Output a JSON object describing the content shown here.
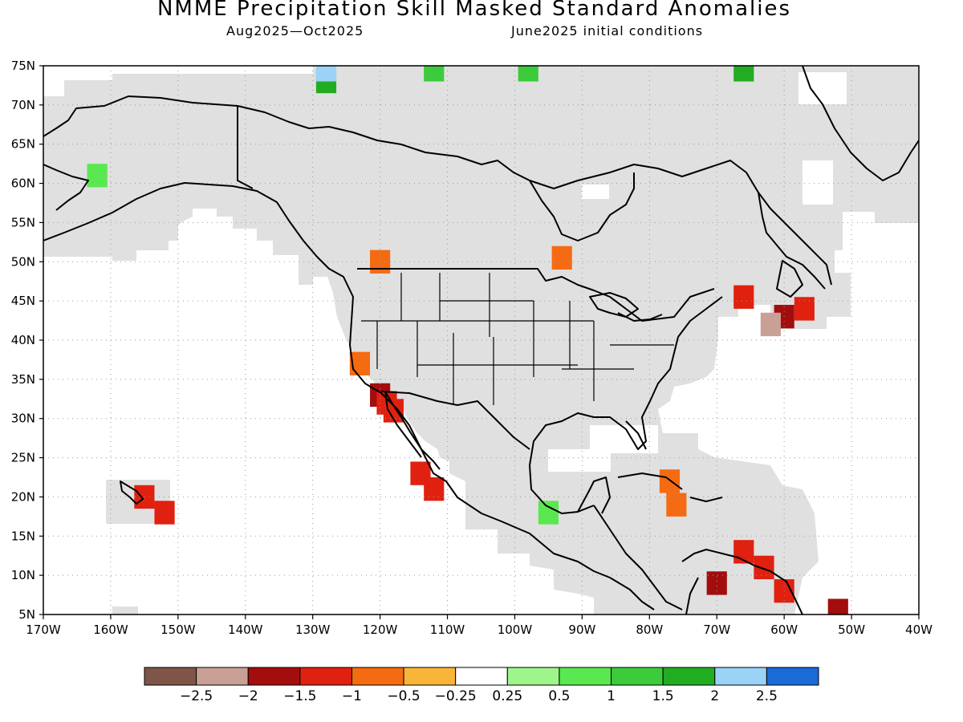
{
  "title": "NMME Precipitation Skill Masked Standard Anomalies",
  "subtitle_left": "Aug2025—Oct2025",
  "subtitle_right": "June2025 initial conditions",
  "map": {
    "lon_range": [
      -170,
      -40
    ],
    "lat_range": [
      5,
      75
    ],
    "lon_ticks": [
      {
        "value": -170,
        "label": "170W"
      },
      {
        "value": -160,
        "label": "160W"
      },
      {
        "value": -150,
        "label": "150W"
      },
      {
        "value": -140,
        "label": "140W"
      },
      {
        "value": -130,
        "label": "130W"
      },
      {
        "value": -120,
        "label": "120W"
      },
      {
        "value": -110,
        "label": "110W"
      },
      {
        "value": -100,
        "label": "100W"
      },
      {
        "value": -90,
        "label": "90W"
      },
      {
        "value": -80,
        "label": "80W"
      },
      {
        "value": -70,
        "label": "70W"
      },
      {
        "value": -60,
        "label": "60W"
      },
      {
        "value": -50,
        "label": "50W"
      },
      {
        "value": -40,
        "label": "40W"
      }
    ],
    "lat_ticks": [
      {
        "value": 75,
        "label": "75N"
      },
      {
        "value": 70,
        "label": "70N"
      },
      {
        "value": 65,
        "label": "65N"
      },
      {
        "value": 60,
        "label": "60N"
      },
      {
        "value": 55,
        "label": "55N"
      },
      {
        "value": 50,
        "label": "50N"
      },
      {
        "value": 45,
        "label": "45N"
      },
      {
        "value": 40,
        "label": "40N"
      },
      {
        "value": 35,
        "label": "35N"
      },
      {
        "value": 30,
        "label": "30N"
      },
      {
        "value": 25,
        "label": "25N"
      },
      {
        "value": 20,
        "label": "20N"
      },
      {
        "value": 15,
        "label": "15N"
      },
      {
        "value": 10,
        "label": "10N"
      },
      {
        "value": 5,
        "label": "5N"
      }
    ],
    "grid": true,
    "mask_color": "#e0e0e0",
    "coast_color": "#000000",
    "anomaly_cells": [
      {
        "lon": -120,
        "lat": 33,
        "level": -1.75
      },
      {
        "lon": -119,
        "lat": 32,
        "level": -1.25
      },
      {
        "lon": -118,
        "lat": 31,
        "level": -1.25
      },
      {
        "lon": -123,
        "lat": 37,
        "level": -0.5
      },
      {
        "lon": -114,
        "lat": 23,
        "level": -1.25
      },
      {
        "lon": -112,
        "lat": 21,
        "level": -1.25
      },
      {
        "lon": -155,
        "lat": 20,
        "level": -1.25
      },
      {
        "lon": -152,
        "lat": 18,
        "level": -1.25
      },
      {
        "lon": -60,
        "lat": 43,
        "level": -1.75
      },
      {
        "lon": -57,
        "lat": 44,
        "level": -1.25
      },
      {
        "lon": -62,
        "lat": 42,
        "level": -2.25
      },
      {
        "lon": -66,
        "lat": 13,
        "level": -1.25
      },
      {
        "lon": -63,
        "lat": 11,
        "level": -1.25
      },
      {
        "lon": -70,
        "lat": 9,
        "level": -1.75
      },
      {
        "lon": -60,
        "lat": 8,
        "level": -1.25
      },
      {
        "lon": -52,
        "lat": 5.5,
        "level": -1.75
      },
      {
        "lon": -77,
        "lat": 22,
        "level": -0.5
      },
      {
        "lon": -76,
        "lat": 19,
        "level": -0.5
      },
      {
        "lon": -95,
        "lat": 18,
        "level": 0.75
      },
      {
        "lon": -162,
        "lat": 61,
        "level": 0.75
      },
      {
        "lon": -112,
        "lat": 74.5,
        "level": 1.25
      },
      {
        "lon": -98,
        "lat": 74.5,
        "level": 1.25
      },
      {
        "lon": -66,
        "lat": 74.5,
        "level": 1.75
      },
      {
        "lon": -128,
        "lat": 73,
        "level": 1.75
      },
      {
        "lon": -128,
        "lat": 74.5,
        "level": 2.25
      },
      {
        "lon": -120,
        "lat": 50,
        "level": -0.5
      },
      {
        "lon": -93,
        "lat": 50.5,
        "level": -0.5
      },
      {
        "lon": -66,
        "lat": 45.5,
        "level": -1.25
      }
    ]
  },
  "colorbar": {
    "colors": [
      "#7f5547",
      "#c9a096",
      "#a30d0d",
      "#e0210f",
      "#f46b12",
      "#f9b53a",
      "#ffffff",
      "#9ef58a",
      "#5ae850",
      "#3bcb3b",
      "#22ac22",
      "#9ad3f6",
      "#1a6ad7"
    ],
    "labels": [
      "−2.5",
      "−2",
      "−1.5",
      "−1",
      "−0.5",
      "−0.25",
      "0.25",
      "0.5",
      "1",
      "1.5",
      "2",
      "2.5"
    ]
  }
}
